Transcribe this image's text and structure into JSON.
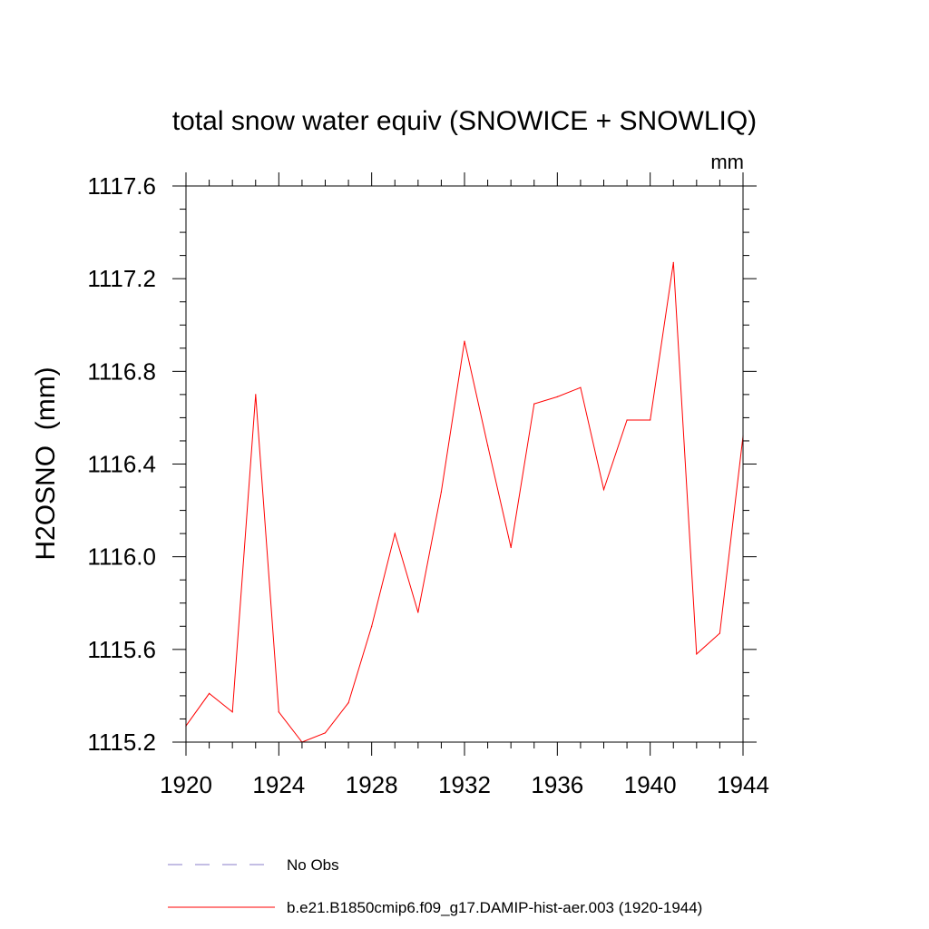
{
  "chart_data": {
    "type": "line",
    "title": "total snow water equiv (SNOWICE + SNOWLIQ)",
    "units": "mm",
    "ylabel": "H2OSNO  (mm)",
    "xlabel": "",
    "xlim": [
      1920,
      1944
    ],
    "ylim": [
      1115.2,
      1117.6
    ],
    "x_ticks": [
      1920,
      1924,
      1928,
      1932,
      1936,
      1940,
      1944
    ],
    "y_ticks": [
      1115.2,
      1115.6,
      1116.0,
      1116.4,
      1116.8,
      1117.2,
      1117.6
    ],
    "x_tick_labels": [
      "1920",
      "1924",
      "1928",
      "1932",
      "1936",
      "1940",
      "1944"
    ],
    "y_tick_labels": [
      "1115.2",
      "1115.6",
      "1116.0",
      "1116.4",
      "1116.8",
      "1117.2",
      "1117.6"
    ],
    "series": [
      {
        "name": "b.e21.B1850cmip6.f09_g17.DAMIP-hist-aer.003 (1920-1944)",
        "color": "#ff0000",
        "x": [
          1920,
          1921,
          1922,
          1923,
          1924,
          1925,
          1926,
          1927,
          1928,
          1929,
          1930,
          1931,
          1932,
          1933,
          1934,
          1935,
          1936,
          1937,
          1938,
          1939,
          1940,
          1941,
          1942,
          1943,
          1944
        ],
        "y": [
          1115.27,
          1115.41,
          1115.33,
          1116.7,
          1115.33,
          1115.2,
          1115.24,
          1115.37,
          1115.7,
          1116.1,
          1115.76,
          1116.28,
          1116.93,
          1116.48,
          1116.04,
          1116.66,
          1116.69,
          1116.73,
          1116.29,
          1116.59,
          1116.59,
          1117.27,
          1115.58,
          1115.67,
          1116.52
        ]
      }
    ],
    "legend": [
      {
        "label": "No Obs",
        "color": "#8a7cc8",
        "style": "dashed"
      },
      {
        "label": "b.e21.B1850cmip6.f09_g17.DAMIP-hist-aer.003 (1920-1944)",
        "color": "#ff0000",
        "style": "solid"
      }
    ],
    "legend_placement": "bottom",
    "grid": false
  }
}
